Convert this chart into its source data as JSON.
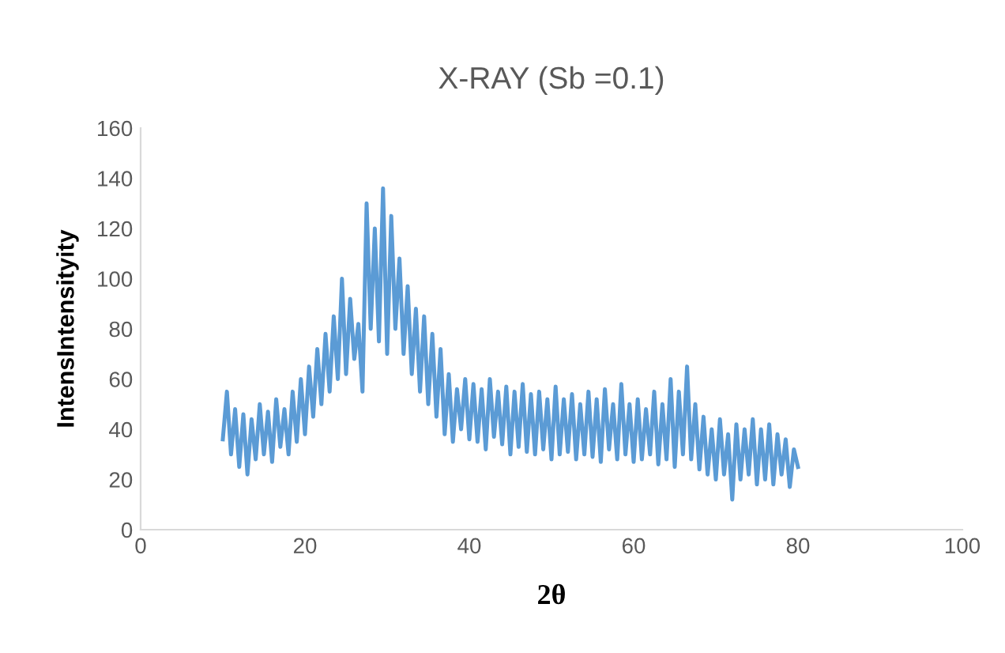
{
  "chart_data": {
    "type": "line",
    "title": "X-RAY (Sb =0.1)",
    "xlabel": "2θ",
    "ylabel": "IntensIntensityity",
    "xlim": [
      0,
      100
    ],
    "xticks": [
      0,
      20,
      40,
      60,
      80,
      100
    ],
    "ylim": [
      0,
      160
    ],
    "yticks": [
      0,
      20,
      40,
      60,
      80,
      100,
      120,
      140,
      160
    ],
    "grid": false,
    "series": [
      {
        "color": "#5b9bd5",
        "x": [
          10,
          10.5,
          11,
          11.5,
          12,
          12.5,
          13,
          13.5,
          14,
          14.5,
          15,
          15.5,
          16,
          16.5,
          17,
          17.5,
          18,
          18.5,
          19,
          19.5,
          20,
          20.5,
          21,
          21.5,
          22,
          22.5,
          23,
          23.5,
          24,
          24.5,
          25,
          25.5,
          26,
          26.5,
          27,
          27.5,
          28,
          28.5,
          29,
          29.5,
          30,
          30.5,
          31,
          31.5,
          32,
          32.5,
          33,
          33.5,
          34,
          34.5,
          35,
          35.5,
          36,
          36.5,
          37,
          37.5,
          38,
          38.5,
          39,
          39.5,
          40,
          40.5,
          41,
          41.5,
          42,
          42.5,
          43,
          43.5,
          44,
          44.5,
          45,
          45.5,
          46,
          46.5,
          47,
          47.5,
          48,
          48.5,
          49,
          49.5,
          50,
          50.5,
          51,
          51.5,
          52,
          52.5,
          53,
          53.5,
          54,
          54.5,
          55,
          55.5,
          56,
          56.5,
          57,
          57.5,
          58,
          58.5,
          59,
          59.5,
          60,
          60.5,
          61,
          61.5,
          62,
          62.5,
          63,
          63.5,
          64,
          64.5,
          65,
          65.5,
          66,
          66.5,
          67,
          67.5,
          68,
          68.5,
          69,
          69.5,
          70,
          70.5,
          71,
          71.5,
          72,
          72.5,
          73,
          73.5,
          74,
          74.5,
          75,
          75.5,
          76,
          76.5,
          77,
          77.5,
          78,
          78.5,
          79,
          79.5,
          80
        ],
        "values": [
          36,
          55,
          30,
          48,
          25,
          46,
          22,
          44,
          28,
          50,
          30,
          47,
          27,
          52,
          33,
          48,
          30,
          55,
          35,
          60,
          38,
          65,
          45,
          72,
          50,
          78,
          55,
          85,
          60,
          100,
          62,
          92,
          68,
          82,
          55,
          130,
          80,
          120,
          75,
          136,
          70,
          125,
          80,
          108,
          70,
          97,
          62,
          88,
          55,
          85,
          50,
          78,
          45,
          72,
          38,
          62,
          35,
          56,
          40,
          60,
          36,
          58,
          35,
          56,
          32,
          60,
          37,
          55,
          34,
          57,
          30,
          55,
          33,
          58,
          31,
          54,
          30,
          55,
          32,
          52,
          28,
          57,
          30,
          52,
          31,
          54,
          28,
          50,
          30,
          55,
          29,
          52,
          27,
          56,
          32,
          50,
          28,
          58,
          30,
          50,
          27,
          52,
          28,
          48,
          30,
          55,
          26,
          50,
          28,
          60,
          25,
          55,
          30,
          65,
          28,
          50,
          24,
          45,
          22,
          40,
          20,
          44,
          22,
          38,
          12,
          42,
          20,
          40,
          22,
          44,
          18,
          40,
          20,
          42,
          18,
          38,
          22,
          36,
          17,
          32,
          25
        ]
      }
    ]
  }
}
